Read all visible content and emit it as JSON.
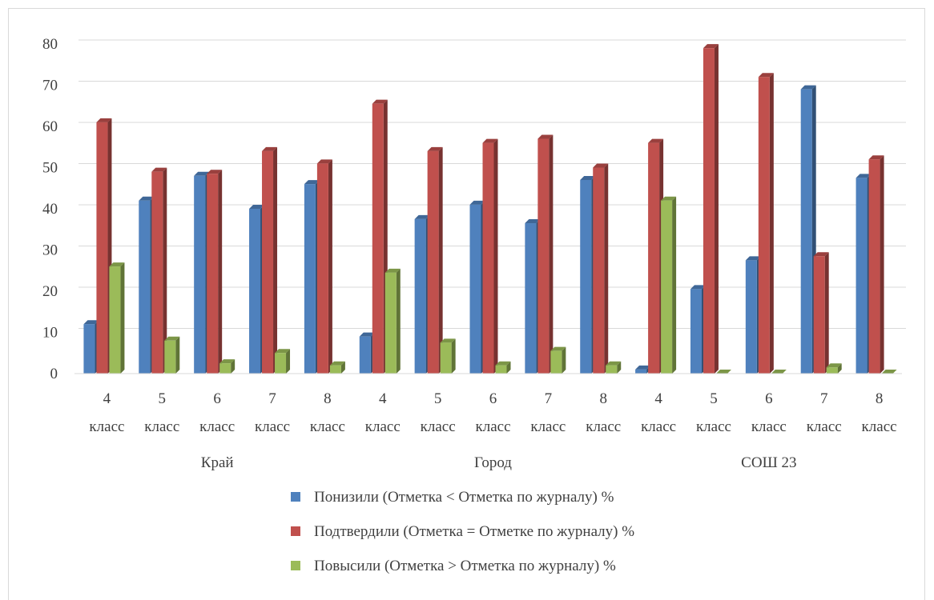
{
  "chart_data": {
    "type": "bar",
    "style": "3d-clustered-column",
    "groups": [
      "Край",
      "Город",
      "СОШ 23"
    ],
    "categories": [
      [
        "4",
        "класс"
      ],
      [
        "5",
        "класс"
      ],
      [
        "6",
        "класс"
      ],
      [
        "7",
        "класс"
      ],
      [
        "8",
        "класс"
      ],
      [
        "4",
        "класс"
      ],
      [
        "5",
        "класс"
      ],
      [
        "6",
        "класс"
      ],
      [
        "7",
        "класс"
      ],
      [
        "8",
        "класс"
      ],
      [
        "4",
        "класс"
      ],
      [
        "5",
        "класс"
      ],
      [
        "6",
        "класс"
      ],
      [
        "7",
        "класс"
      ],
      [
        "8",
        "класс"
      ]
    ],
    "series": [
      {
        "name": "Понизили (Отметка < Отметка по журналу) %",
        "color": "#4f81bd",
        "values": [
          12,
          42,
          48,
          40,
          46,
          9,
          37.5,
          41,
          36.5,
          47,
          1,
          20.5,
          27.5,
          69,
          47.5
        ]
      },
      {
        "name": "Подтвердили (Отметка = Отметке по журналу) %",
        "color": "#c0504d",
        "values": [
          61,
          49,
          48.5,
          54,
          51,
          65.5,
          54,
          56,
          57,
          50,
          56,
          79,
          72,
          28.5,
          52
        ]
      },
      {
        "name": "Повысили (Отметка > Отметка по журналу) %",
        "color": "#9bbb59",
        "values": [
          26,
          8,
          2.5,
          5,
          2,
          24.5,
          7.5,
          2,
          5.5,
          2,
          42,
          0,
          0,
          1.5,
          0
        ]
      }
    ],
    "y_ticks": [
      "0",
      "10",
      "20",
      "30",
      "40",
      "50",
      "60",
      "70",
      "80"
    ],
    "ylim": [
      0,
      80
    ],
    "grid": true,
    "legend_position": "bottom"
  }
}
